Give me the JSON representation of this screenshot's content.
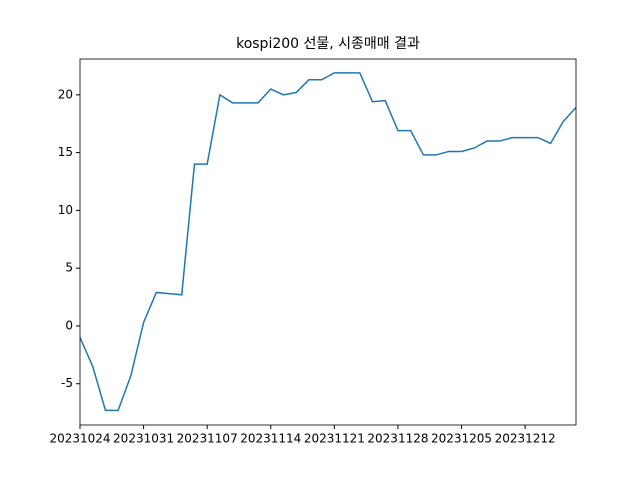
{
  "chart_data": {
    "type": "line",
    "title": "kospi200 선물, 시종매매 결과",
    "categories": [
      "20231024",
      null,
      null,
      null,
      null,
      "20231031",
      null,
      null,
      null,
      null,
      "20231107",
      null,
      null,
      null,
      null,
      "20231114",
      null,
      null,
      null,
      null,
      "20231121",
      null,
      null,
      null,
      null,
      "20231128",
      null,
      null,
      null,
      null,
      "20231205",
      null,
      null,
      null,
      null,
      "20231212",
      null,
      null,
      null,
      null
    ],
    "series": [
      {
        "name": "kospi200",
        "color": "#1f77b4",
        "values": [
          -1.0,
          -3.5,
          -7.3,
          -7.3,
          -4.3,
          0.3,
          2.9,
          2.8,
          2.7,
          14.0,
          14.0,
          20.0,
          19.3,
          19.3,
          19.3,
          20.5,
          20.0,
          20.2,
          21.3,
          21.3,
          21.9,
          21.9,
          21.9,
          19.4,
          19.5,
          16.9,
          16.9,
          14.8,
          14.8,
          15.1,
          15.1,
          15.4,
          16.0,
          16.0,
          16.3,
          16.3,
          16.3,
          15.8,
          17.7,
          18.9
        ]
      }
    ],
    "ylim": [
      -8.57,
      23.1
    ],
    "yticks": [
      -5,
      0,
      5,
      10,
      15,
      20
    ]
  }
}
